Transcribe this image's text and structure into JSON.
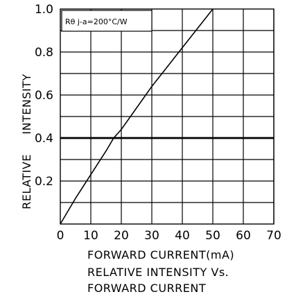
{
  "chart_data": {
    "type": "line",
    "annotation": "Rθ j-a=200°C/W",
    "xlabel": "FORWARD  CURRENT(mA)",
    "ylabel_parts": [
      "RELATIVE",
      "INTENSITY"
    ],
    "title_lines": [
      "RELATIVE   INTENSITY  Vs.",
      "FORWARD  CURRENT"
    ],
    "xlim": [
      0,
      70
    ],
    "ylim": [
      0,
      1.0
    ],
    "x_ticks": [
      0,
      10,
      20,
      30,
      40,
      50,
      60,
      70
    ],
    "x_tick_labels": [
      "0",
      "10",
      "20",
      "30",
      "40",
      "50",
      "60",
      "70"
    ],
    "y_ticks": [
      0.2,
      0.4,
      0.6,
      0.8,
      1.0
    ],
    "y_tick_labels": [
      "0.2",
      "0.4",
      "0.6",
      "0.8",
      "1.0"
    ],
    "minor_y_step": 0.1,
    "grid": true,
    "highlight_y": 0.4,
    "series": [
      {
        "x": [
          0,
          5,
          10,
          15,
          17.5,
          20,
          25,
          30,
          35,
          40,
          45,
          50
        ],
        "y": [
          0,
          0.12,
          0.23,
          0.34,
          0.4,
          0.44,
          0.54,
          0.64,
          0.73,
          0.82,
          0.91,
          1.0
        ]
      }
    ],
    "colors": {
      "line": "#000000",
      "grid": "#000000",
      "background": "#ffffff"
    }
  }
}
